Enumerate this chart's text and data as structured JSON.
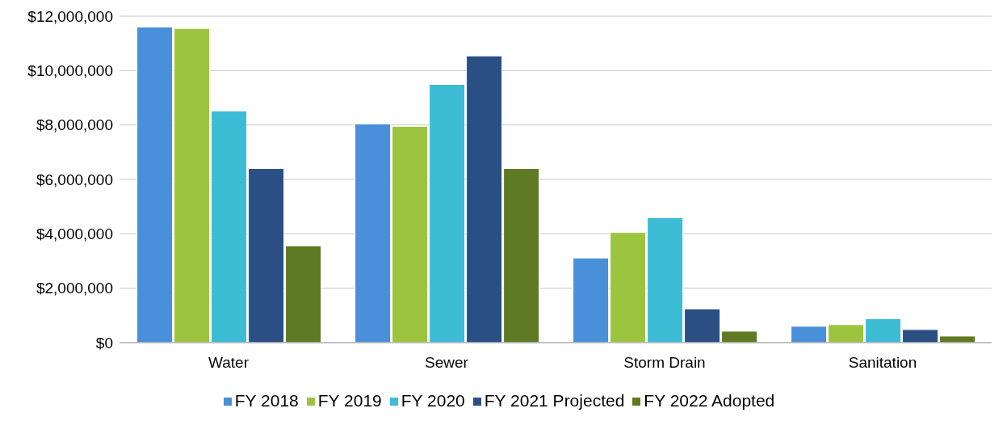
{
  "chart_data": {
    "type": "bar",
    "categories": [
      "Water",
      "Sewer",
      "Storm Drain",
      "Sanitation"
    ],
    "series": [
      {
        "name": "FY 2018",
        "color": "#4a8fd9",
        "values": [
          11600000,
          8040000,
          3110000,
          600000
        ]
      },
      {
        "name": "FY 2019",
        "color": "#9dc43f",
        "values": [
          11550000,
          7950000,
          4050000,
          660000
        ]
      },
      {
        "name": "FY 2020",
        "color": "#3dbcd6",
        "values": [
          8520000,
          9490000,
          4590000,
          880000
        ]
      },
      {
        "name": "FY 2021 Projected",
        "color": "#2a4f85",
        "values": [
          6400000,
          10540000,
          1240000,
          480000
        ]
      },
      {
        "name": "FY 2022 Adopted",
        "color": "#5e7a22",
        "values": [
          3560000,
          6400000,
          420000,
          240000
        ]
      }
    ],
    "ylim": [
      0,
      12000000
    ],
    "yticks": [
      {
        "value": 0,
        "label": "$0"
      },
      {
        "value": 2000000,
        "label": "$2,000,000"
      },
      {
        "value": 4000000,
        "label": "$4,000,000"
      },
      {
        "value": 6000000,
        "label": "$6,000,000"
      },
      {
        "value": 8000000,
        "label": "$8,000,000"
      },
      {
        "value": 10000000,
        "label": "$10,000,000"
      },
      {
        "value": 12000000,
        "label": "$12,000,000"
      }
    ],
    "grid": "y",
    "legend": "bottom"
  }
}
